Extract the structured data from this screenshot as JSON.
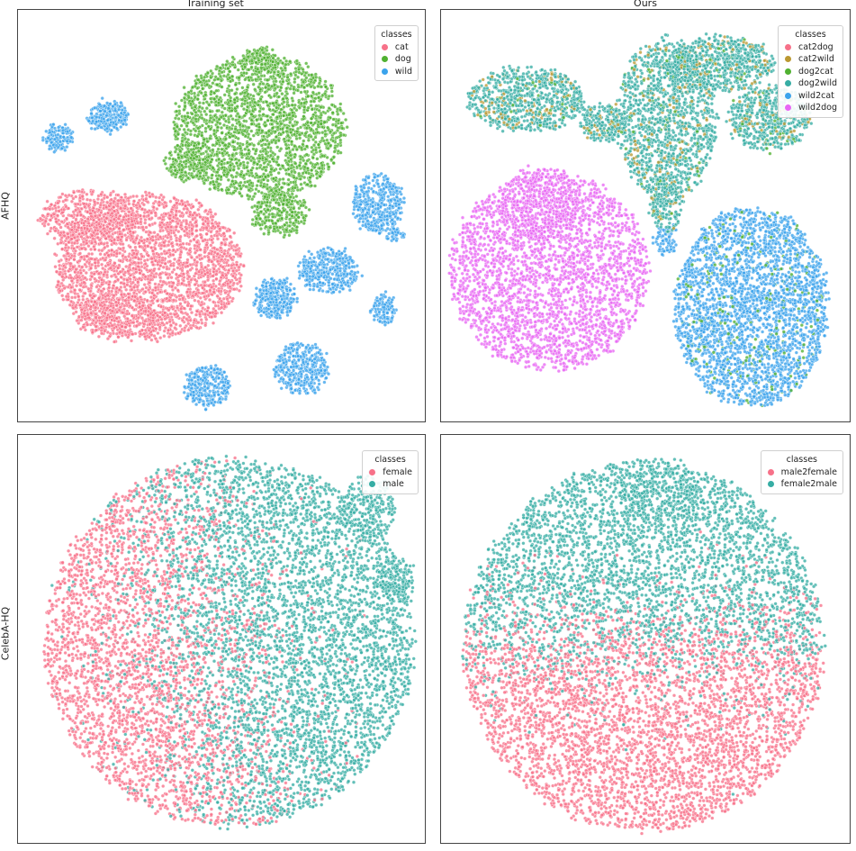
{
  "figure": {
    "col_titles": [
      "Training set",
      "Ours"
    ],
    "row_labels": [
      "AFHQ",
      "CelebA-HQ"
    ]
  },
  "chart_data": [
    {
      "type": "scatter",
      "row": "AFHQ",
      "column": "Training set",
      "legend_title": "classes",
      "legend_position": "top-right",
      "axes_ticks": false,
      "series": [
        {
          "name": "cat",
          "color": "#f77189",
          "approx_points": 4200
        },
        {
          "name": "dog",
          "color": "#50b131",
          "approx_points": 3100
        },
        {
          "name": "wild",
          "color": "#3ba3ec",
          "approx_points": 3000
        }
      ]
    },
    {
      "type": "scatter",
      "row": "AFHQ",
      "column": "Ours",
      "legend_title": "classes",
      "legend_position": "top-right",
      "axes_ticks": false,
      "series": [
        {
          "name": "cat2dog",
          "color": "#f77189",
          "approx_points": 0
        },
        {
          "name": "cat2wild",
          "color": "#bb9832",
          "approx_points": 400
        },
        {
          "name": "dog2cat",
          "color": "#50b131",
          "approx_points": 400
        },
        {
          "name": "dog2wild",
          "color": "#36ada4",
          "approx_points": 4200
        },
        {
          "name": "wild2cat",
          "color": "#3ba3ec",
          "approx_points": 4500
        },
        {
          "name": "wild2dog",
          "color": "#e866f4",
          "approx_points": 4300
        }
      ]
    },
    {
      "type": "scatter",
      "row": "CelebA-HQ",
      "column": "Training set",
      "legend_title": "classes",
      "legend_position": "top-right",
      "axes_ticks": false,
      "series": [
        {
          "name": "female",
          "color": "#f77189",
          "approx_points": 9000
        },
        {
          "name": "male",
          "color": "#36ada4",
          "approx_points": 7500
        }
      ]
    },
    {
      "type": "scatter",
      "row": "CelebA-HQ",
      "column": "Ours",
      "legend_title": "classes",
      "legend_position": "top-right",
      "axes_ticks": false,
      "series": [
        {
          "name": "male2female",
          "color": "#f77189",
          "approx_points": 8000
        },
        {
          "name": "female2male",
          "color": "#36ada4",
          "approx_points": 7500
        }
      ]
    }
  ]
}
